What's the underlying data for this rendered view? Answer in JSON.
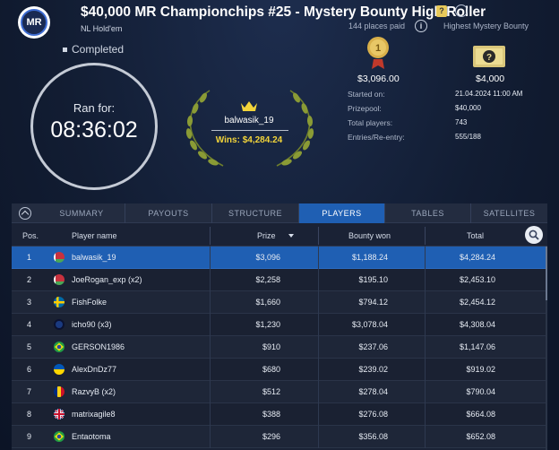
{
  "header": {
    "logo_text": "MR",
    "title": "$40,000 MR Championchips #25 - Mystery Bounty High Roller",
    "subtitle": "NL Hold'em",
    "places_paid": "144 places paid",
    "highest_label": "Highest Mystery Bounty",
    "title_icon": "?",
    "more_icon": "···",
    "info_icon": "i"
  },
  "status": "Completed",
  "timer": {
    "label": "Ran for:",
    "value": "08:36:02"
  },
  "winner": {
    "name": "balwasik_19",
    "wins": "Wins: $4,284.24"
  },
  "first_prize": "$3,096.00",
  "first_medal_label": "1",
  "highest_bounty": "$4,000",
  "details": [
    {
      "label": "Started on:",
      "value": "21.04.2024  11:00 AM"
    },
    {
      "label": "Prizepool:",
      "value": "$40,000"
    },
    {
      "label": "Total players:",
      "value": "743"
    },
    {
      "label": "Entries/Re-entry:",
      "value": "555/188"
    }
  ],
  "tabs": [
    {
      "label": "SUMMARY",
      "active": false
    },
    {
      "label": "PAYOUTS",
      "active": false
    },
    {
      "label": "STRUCTURE",
      "active": false
    },
    {
      "label": "PLAYERS",
      "active": true
    },
    {
      "label": "TABLES",
      "active": false
    },
    {
      "label": "SATELLITES",
      "active": false
    }
  ],
  "columns": {
    "pos": "Pos.",
    "name": "Player name",
    "prize": "Prize",
    "bounty": "Bounty won",
    "total": "Total"
  },
  "players": [
    {
      "pos": "1",
      "name": "balwasik_19",
      "prize": "$3,096",
      "bounty": "$1,188.24",
      "total": "$4,284.24",
      "flag": "by",
      "highlight": true
    },
    {
      "pos": "2",
      "name": "JoeRogan_exp (x2)",
      "prize": "$2,258",
      "bounty": "$195.10",
      "total": "$2,453.10",
      "flag": "by"
    },
    {
      "pos": "3",
      "name": "FishFolke",
      "prize": "$1,660",
      "bounty": "$794.12",
      "total": "$2,454.12",
      "flag": "se"
    },
    {
      "pos": "4",
      "name": "icho90 (x3)",
      "prize": "$1,230",
      "bounty": "$3,078.04",
      "total": "$4,308.04",
      "flag": "dark"
    },
    {
      "pos": "5",
      "name": "GERSON1986",
      "prize": "$910",
      "bounty": "$237.06",
      "total": "$1,147.06",
      "flag": "br"
    },
    {
      "pos": "6",
      "name": "AlexDnDz77",
      "prize": "$680",
      "bounty": "$239.02",
      "total": "$919.02",
      "flag": "ua"
    },
    {
      "pos": "7",
      "name": "RazvyB (x2)",
      "prize": "$512",
      "bounty": "$278.04",
      "total": "$790.04",
      "flag": "ro"
    },
    {
      "pos": "8",
      "name": "matrixagile8",
      "prize": "$388",
      "bounty": "$276.08",
      "total": "$664.08",
      "flag": "gb"
    },
    {
      "pos": "9",
      "name": "Entaotoma",
      "prize": "$296",
      "bounty": "$356.08",
      "total": "$652.08",
      "flag": "br"
    }
  ],
  "colors": {
    "accent": "#1f5fb3",
    "gold": "#f2d43a",
    "background": "#121d33"
  }
}
